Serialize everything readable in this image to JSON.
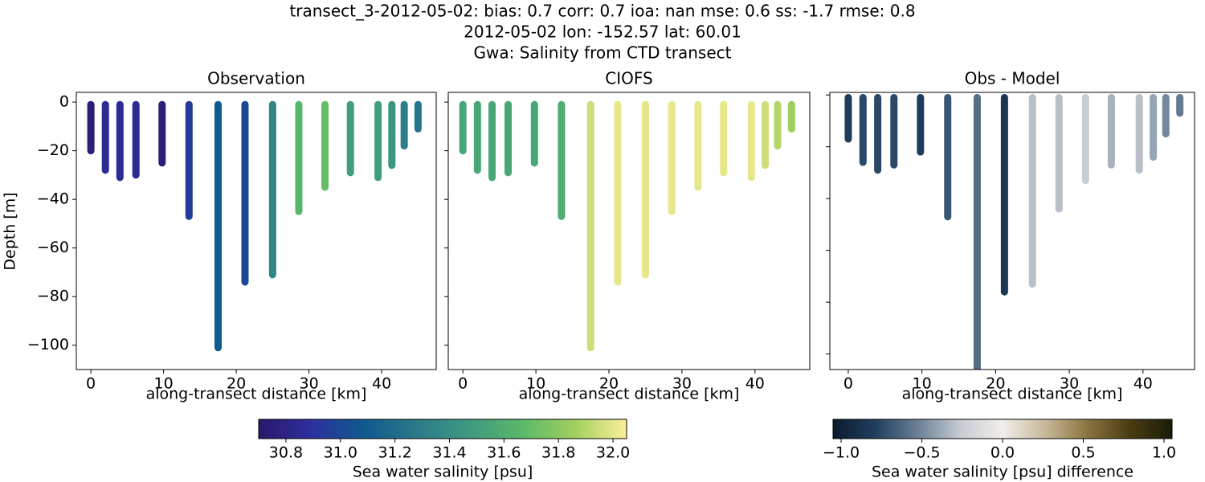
{
  "title": [
    "transect_3-2012-05-02: bias: 0.7  corr: 0.7  ioa: nan  mse: 0.6  ss: -1.7  rmse: 0.8",
    "2012-05-02 lon: -152.57 lat: 60.01",
    "Gwa: Salinity from CTD transect"
  ],
  "colorbars": [
    {
      "label": "Sea water salinity [psu]",
      "lim": [
        30.7,
        32.05
      ],
      "colors": [
        "#2a186c",
        "#2c2f9e",
        "#0f5a8e",
        "#2a7a8a",
        "#3d9a80",
        "#5ab86a",
        "#a0cf5e",
        "#fdef9a"
      ],
      "ticks": [
        30.8,
        {
          "value": 31.0,
          "label": "31.0"
        },
        31.2,
        31.4,
        31.6,
        31.8,
        {
          "value": 32.0,
          "label": "32.0"
        }
      ]
    },
    {
      "label": "Sea water salinity [psu] difference",
      "lim": [
        -1.05,
        1.05
      ],
      "colors": [
        "#0d1a2e",
        "#1f3f5f",
        "#6b8096",
        "#c6cbd2",
        "#f1eeeb",
        "#c8b89a",
        "#8c7440",
        "#4a3c12",
        "#1a1d0a"
      ],
      "ticks": [
        {
          "value": -1.0,
          "label": "−1.0"
        },
        {
          "value": -0.5,
          "label": "−0.5"
        },
        {
          "value": 0.0,
          "label": "0.0"
        },
        {
          "value": 0.5,
          "label": "0.5"
        },
        {
          "value": 1.0,
          "label": "1.0"
        }
      ]
    }
  ],
  "chart_data": [
    {
      "type": "scatter",
      "title": "Observation",
      "xlabel": "along-transect distance [km]",
      "ylabel": "Depth [m]",
      "colorbar": 0,
      "ytick_labels": true,
      "xlim": [
        -2,
        47.5
      ],
      "ylim": [
        -110,
        4
      ],
      "xticks": [
        0,
        10,
        20,
        30,
        40
      ],
      "yticks": [
        0,
        {
          "value": -20,
          "label": "−20"
        },
        {
          "value": -40,
          "label": "−40"
        },
        {
          "value": -60,
          "label": "−60"
        },
        {
          "value": -80,
          "label": "−80"
        },
        {
          "value": -100,
          "label": "−100"
        }
      ],
      "x": [
        0,
        2,
        4,
        6.2,
        9.8,
        13.5,
        17.5,
        21.2,
        25,
        28.6,
        32.2,
        35.7,
        39.5,
        41.4,
        43.1,
        45
      ],
      "depth": [
        -20,
        -28,
        -31,
        -30,
        -25,
        -47,
        -101,
        -74,
        -71,
        -45,
        -35,
        -29,
        -31,
        -26,
        -18,
        -11
      ],
      "values": [
        30.75,
        30.85,
        30.85,
        30.85,
        30.75,
        30.95,
        31.1,
        31.0,
        31.35,
        31.65,
        31.7,
        31.5,
        31.5,
        31.45,
        31.3,
        31.25
      ]
    },
    {
      "type": "scatter",
      "title": "CIOFS",
      "xlabel": "along-transect distance [km]",
      "colorbar": 0,
      "ytick_labels": false,
      "xlim": [
        -2,
        47.5
      ],
      "ylim": [
        -110,
        4
      ],
      "xticks": [
        0,
        10,
        20,
        30,
        40
      ],
      "yticks": [
        0,
        -20,
        -40,
        -60,
        -80,
        -100
      ],
      "x": [
        0,
        2,
        4,
        6.2,
        9.8,
        13.5,
        17.5,
        21.2,
        25,
        28.6,
        32.2,
        35.7,
        39.5,
        41.4,
        43.1,
        45
      ],
      "depth": [
        -20,
        -28,
        -31,
        -29,
        -25,
        -47,
        -101,
        -74,
        -71,
        -45,
        -35,
        -29,
        -31,
        -26,
        -18,
        -11
      ],
      "values": [
        31.55,
        31.55,
        31.55,
        31.55,
        31.55,
        31.6,
        31.95,
        32.0,
        32.0,
        32.0,
        32.0,
        32.0,
        32.0,
        31.95,
        31.9,
        31.85
      ]
    },
    {
      "type": "scatter",
      "title": "Obs - Model",
      "xlabel": "along-transect distance [km]",
      "colorbar": 1,
      "ytick_labels": false,
      "xlim": [
        -2.5,
        47
      ],
      "ylim": [
        -106,
        1
      ],
      "xticks": [
        0,
        10,
        20,
        30,
        40
      ],
      "yticks": [
        0,
        -20,
        -40,
        -60,
        -80,
        -100
      ],
      "x": [
        0,
        2,
        4,
        6.2,
        9.8,
        13.5,
        17.5,
        21.2,
        25,
        28.6,
        32.2,
        35.7,
        39.5,
        41.4,
        43.1,
        45
      ],
      "depth": [
        -17,
        -26,
        -29,
        -27,
        -22,
        -47,
        -106,
        -76,
        -73,
        -44,
        -33,
        -27,
        -29,
        -24,
        -15,
        -7
      ],
      "values": [
        -0.8,
        -0.75,
        -0.75,
        -0.75,
        -0.8,
        -0.7,
        -0.6,
        -0.85,
        -0.3,
        -0.3,
        -0.25,
        -0.35,
        -0.3,
        -0.4,
        -0.5,
        -0.55
      ]
    }
  ]
}
